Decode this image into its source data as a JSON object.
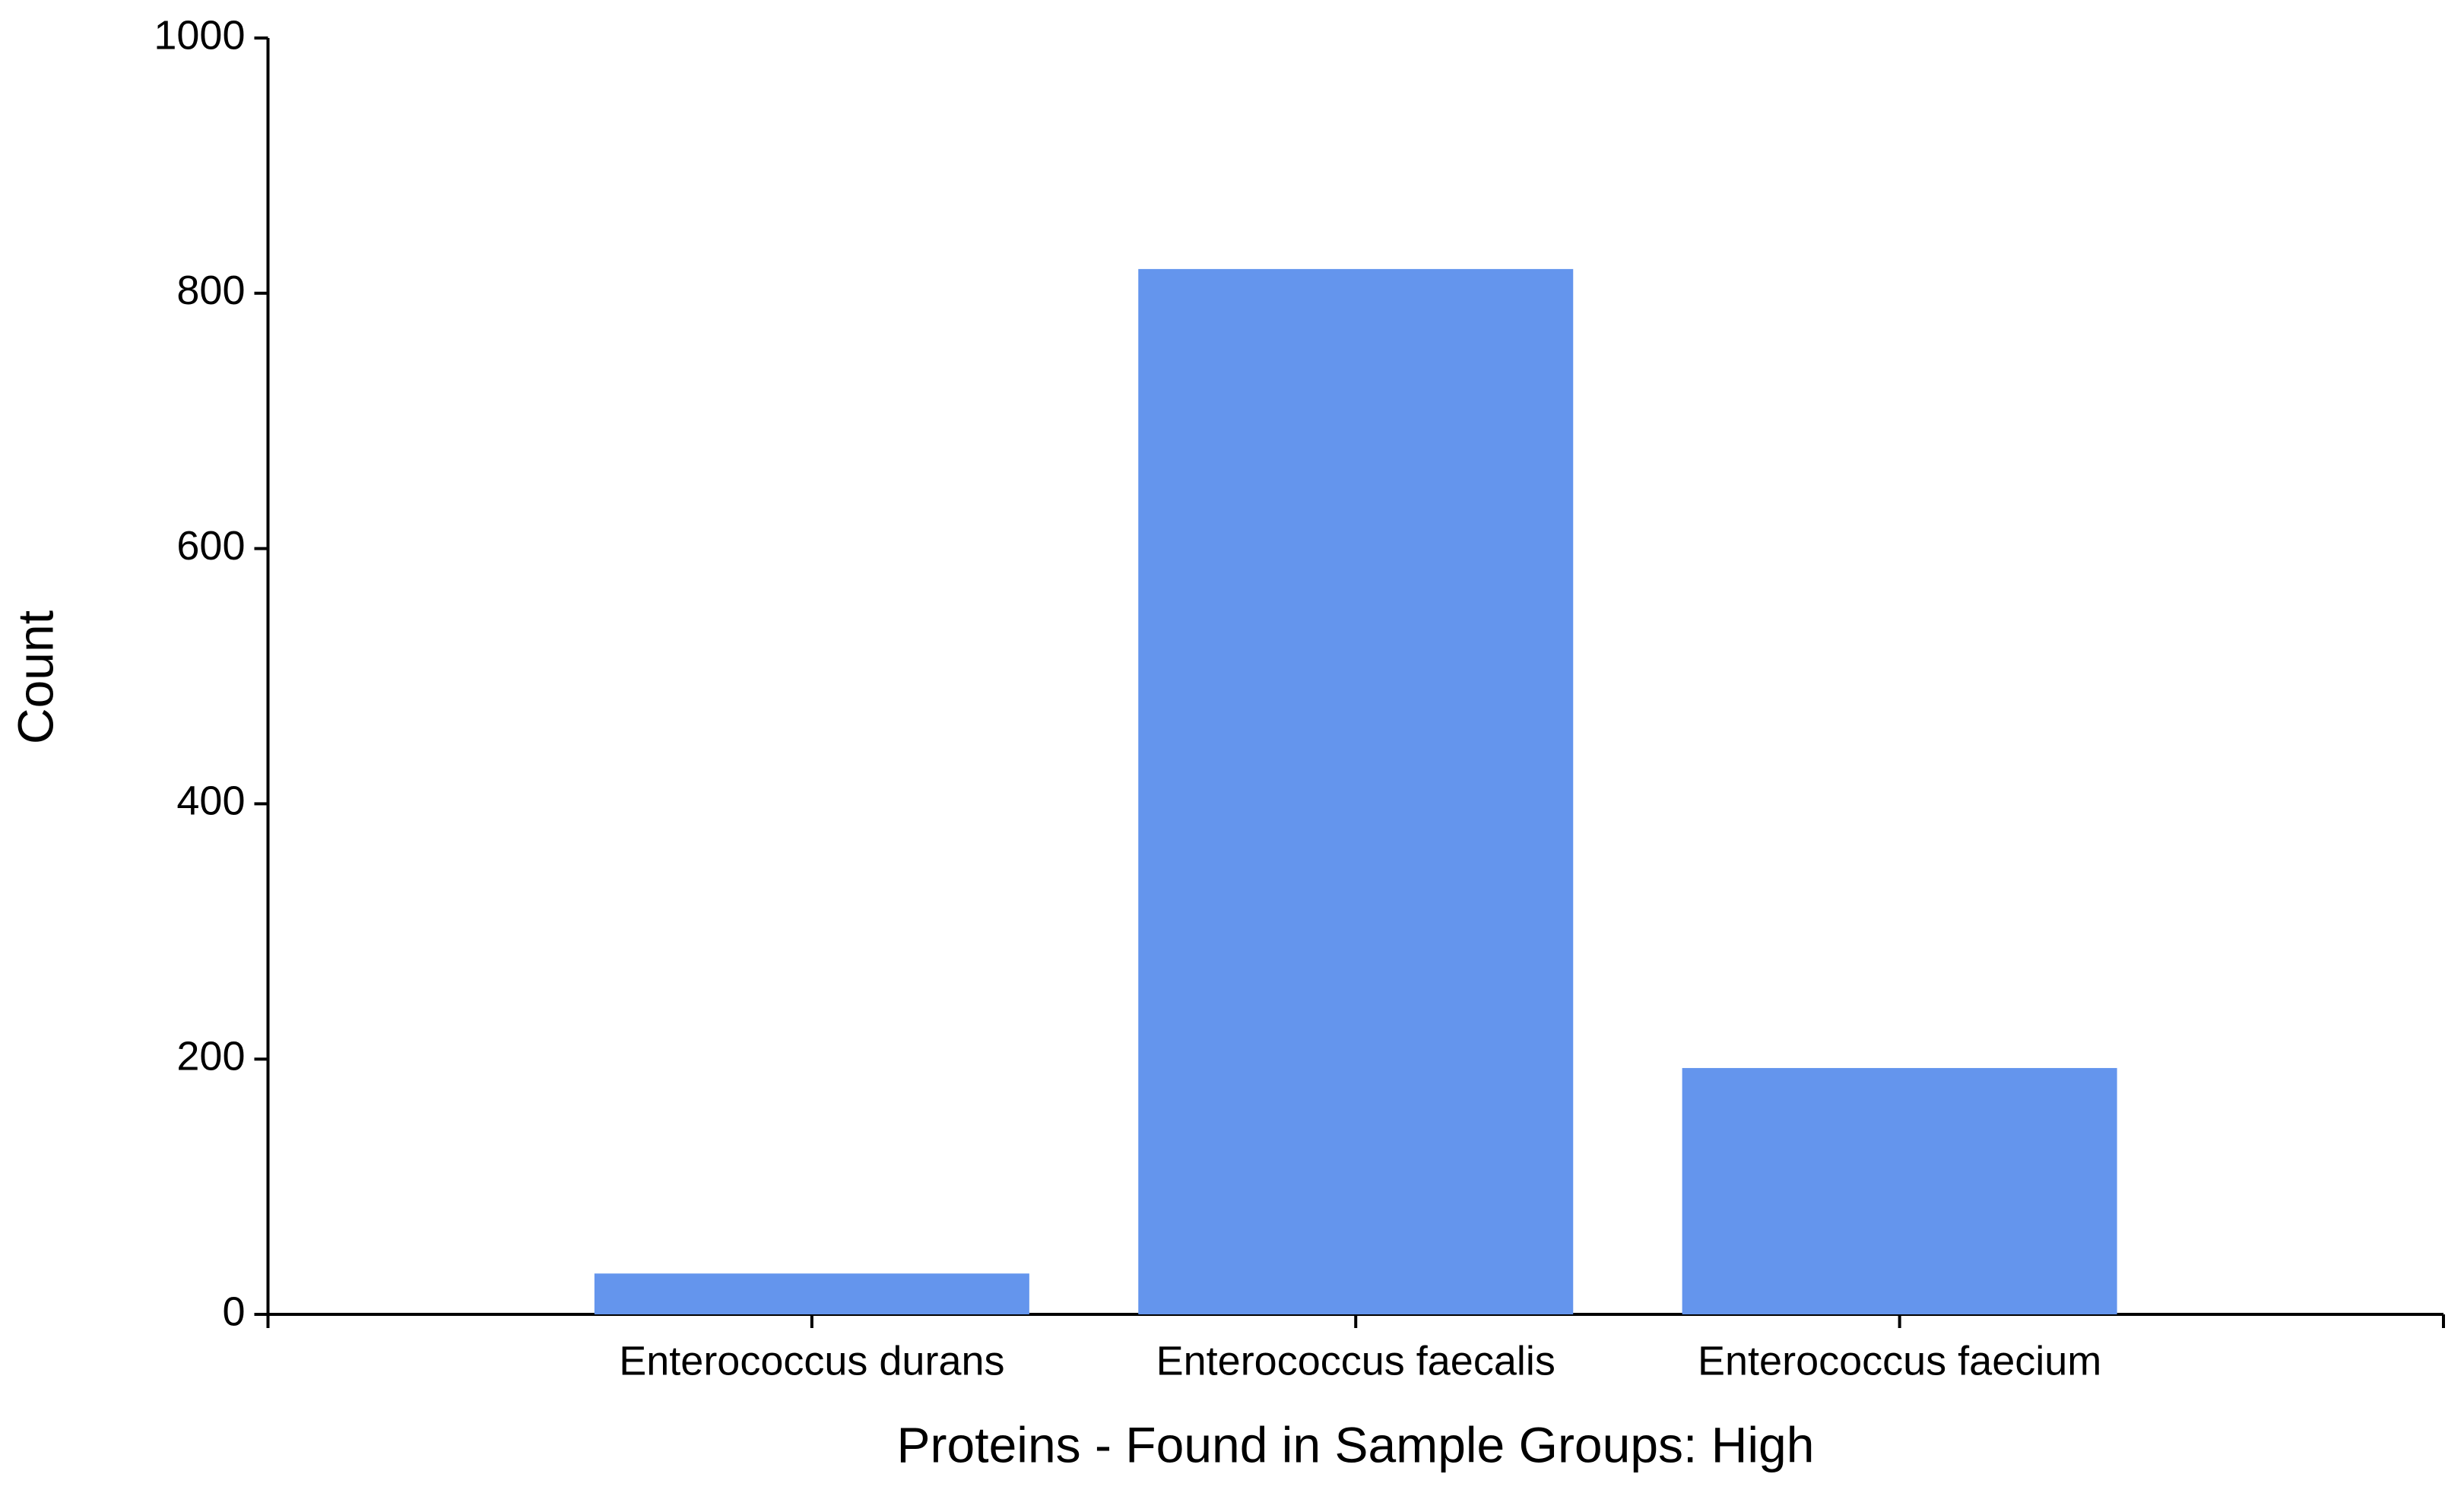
{
  "chart_data": {
    "type": "bar",
    "x_label": "Proteins - Found in Sample Groups: High",
    "y_label": "Count",
    "categories": [
      "Enterococcus durans",
      "Enterococcus faecalis",
      "Enterococcus faecium"
    ],
    "values": [
      32,
      819,
      193
    ],
    "color": "#6495ed",
    "ylim": [
      0,
      1000
    ],
    "yticks": [
      0,
      200,
      400,
      600,
      800,
      1000
    ],
    "grid": false
  }
}
